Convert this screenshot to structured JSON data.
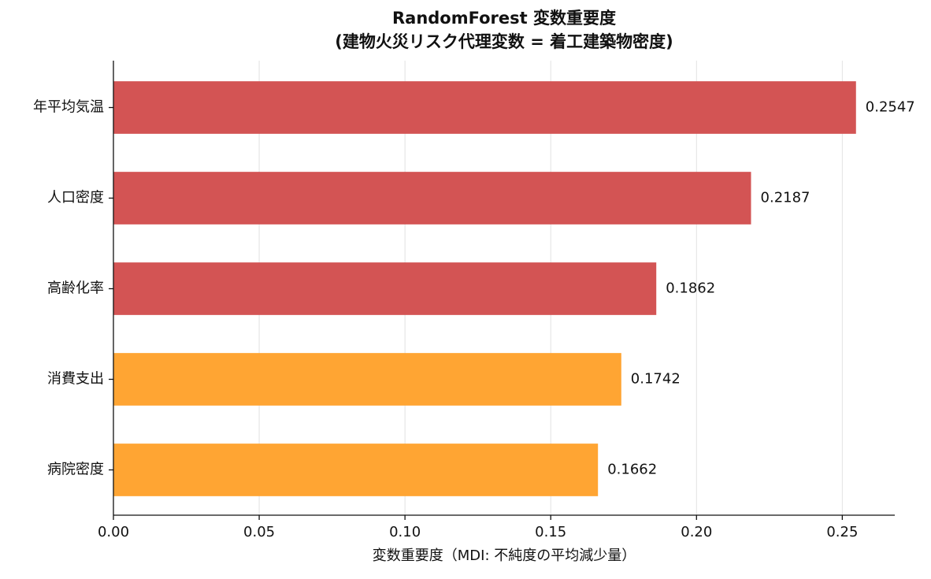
{
  "chart_data": {
    "type": "barh",
    "title": [
      "RandomForest 変数重要度",
      "(建物火災リスク代理変数 = 着工建築物密度)"
    ],
    "categories": [
      "年平均気温",
      "人口密度",
      "高齢化率",
      "消費支出",
      "病院密度"
    ],
    "values": [
      0.2547,
      0.2187,
      0.1862,
      0.1742,
      0.1662
    ],
    "colors": [
      "#d35454",
      "#d35454",
      "#d35454",
      "#ffa533",
      "#ffa533"
    ],
    "xlabel": "変数重要度（MDI: 不純度の平均減少量）",
    "xlim": [
      0,
      0.268
    ],
    "xticks": [
      {
        "value": 0,
        "label": "0.00"
      },
      {
        "value": 0.05,
        "label": "0.05"
      },
      {
        "value": 0.1,
        "label": "0.10"
      },
      {
        "value": 0.15,
        "label": "0.15"
      },
      {
        "value": 0.2,
        "label": "0.20"
      },
      {
        "value": 0.25,
        "label": "0.25"
      }
    ],
    "grid": true
  }
}
